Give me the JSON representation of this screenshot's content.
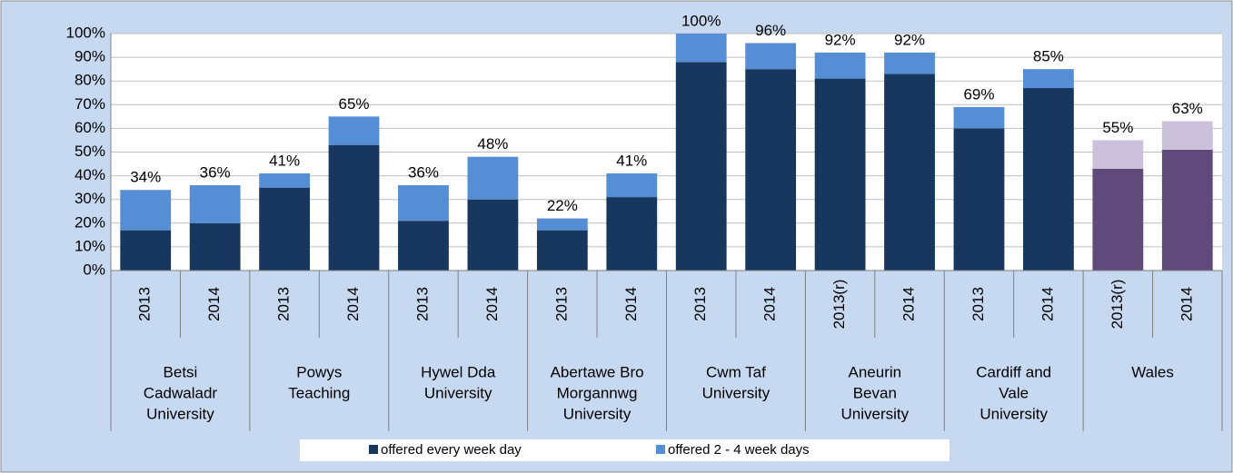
{
  "chart_data": {
    "type": "stacked_bar",
    "categories": [
      "2013",
      "2014",
      "2013",
      "2014",
      "2013",
      "2014",
      "2013",
      "2014",
      "2013",
      "2014",
      "2013(r)",
      "2014",
      "2013",
      "2014",
      "2013(r)",
      "2014"
    ],
    "groups": [
      [
        "Betsi",
        "Cadwaladr",
        "University"
      ],
      [
        "Powys",
        "Teaching"
      ],
      [
        "Hywel Dda",
        "University"
      ],
      [
        "Abertawe Bro",
        "Morgannwg",
        "University"
      ],
      [
        "Cwm Taf",
        "University"
      ],
      [
        "Aneurin",
        "Bevan",
        "University"
      ],
      [
        "Cardiff and",
        "Vale",
        "University"
      ],
      [
        "Wales"
      ]
    ],
    "series": [
      {
        "name": "offered every week day",
        "color": "#17375e",
        "colors": [
          "#17375e",
          "#17375e",
          "#17375e",
          "#17375e",
          "#17375e",
          "#17375e",
          "#17375e",
          "#17375e",
          "#17375e",
          "#17375e",
          "#17375e",
          "#17375e",
          "#17375e",
          "#17375e",
          "#604a7b",
          "#604a7b"
        ],
        "values": [
          17,
          20,
          35,
          53,
          21,
          30,
          17,
          31,
          88,
          85,
          81,
          83,
          60,
          77,
          43,
          51
        ]
      },
      {
        "name": "offered 2 - 4 week days",
        "color": "#558ed5",
        "colors": [
          "#558ed5",
          "#558ed5",
          "#558ed5",
          "#558ed5",
          "#558ed5",
          "#558ed5",
          "#558ed5",
          "#558ed5",
          "#558ed5",
          "#558ed5",
          "#558ed5",
          "#558ed5",
          "#558ed5",
          "#558ed5",
          "#ccc1da",
          "#ccc1da"
        ],
        "values": [
          17,
          16,
          6,
          12,
          15,
          18,
          5,
          10,
          12,
          11,
          11,
          9,
          9,
          8,
          12,
          12
        ]
      }
    ],
    "totals": [
      34,
      36,
      41,
      65,
      36,
      48,
      22,
      41,
      100,
      96,
      92,
      92,
      69,
      85,
      55,
      63
    ],
    "total_labels": [
      "34%",
      "36%",
      "41%",
      "65%",
      "36%",
      "48%",
      "22%",
      "41%",
      "100%",
      "96%",
      "92%",
      "92%",
      "69%",
      "85%",
      "55%",
      "63%"
    ],
    "ylim": [
      0,
      100
    ],
    "yticks": [
      {
        "value": 0,
        "label": "0%"
      },
      {
        "value": 10,
        "label": "10%"
      },
      {
        "value": 20,
        "label": "20%"
      },
      {
        "value": 30,
        "label": "30%"
      },
      {
        "value": 40,
        "label": "40%"
      },
      {
        "value": 50,
        "label": "50%"
      },
      {
        "value": 60,
        "label": "60%"
      },
      {
        "value": 70,
        "label": "70%"
      },
      {
        "value": 80,
        "label": "80%"
      },
      {
        "value": 90,
        "label": "90%"
      },
      {
        "value": 100,
        "label": "100%"
      }
    ],
    "grid": true,
    "legend": "bottom"
  }
}
